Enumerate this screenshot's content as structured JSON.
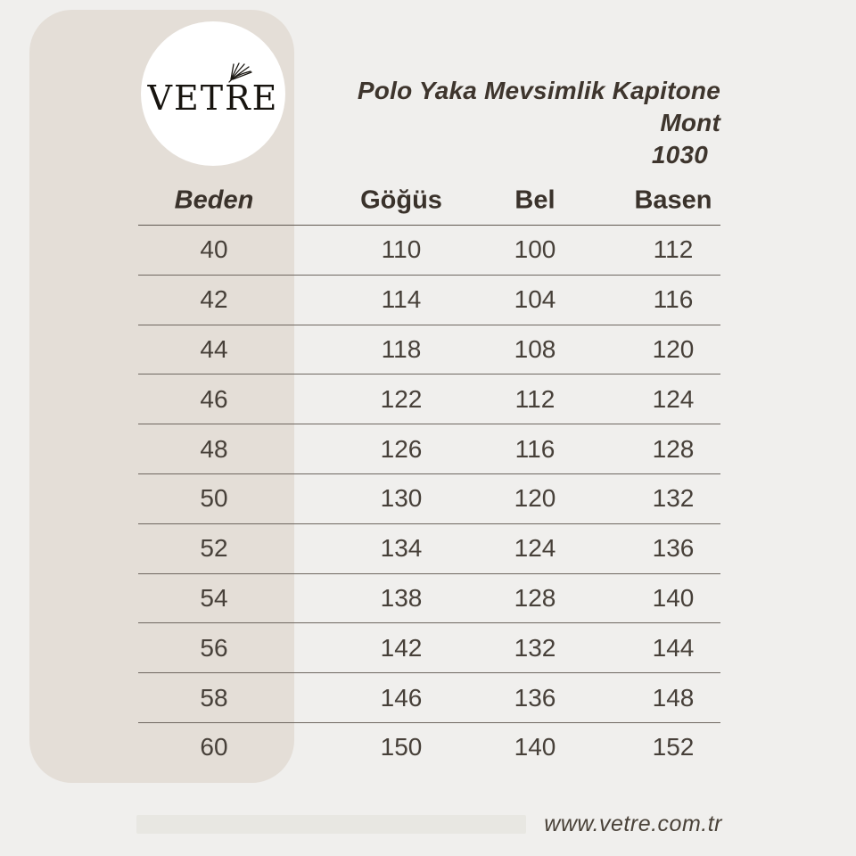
{
  "logo": {
    "brand": "VETRE",
    "icon": "palm-leaf-icon"
  },
  "product": {
    "title_line1": "Polo Yaka Mevsimlik Kapitone Mont",
    "title_line2": "1030"
  },
  "chart_data": {
    "type": "table",
    "title": "Polo Yaka Mevsimlik Kapitone Mont 1030",
    "columns": [
      "Beden",
      "Göğüs",
      "Bel",
      "Basen"
    ],
    "rows": [
      [
        "40",
        "110",
        "100",
        "112"
      ],
      [
        "42",
        "114",
        "104",
        "116"
      ],
      [
        "44",
        "118",
        "108",
        "120"
      ],
      [
        "46",
        "122",
        "112",
        "124"
      ],
      [
        "48",
        "126",
        "116",
        "128"
      ],
      [
        "50",
        "130",
        "120",
        "132"
      ],
      [
        "52",
        "134",
        "124",
        "136"
      ],
      [
        "54",
        "138",
        "128",
        "140"
      ],
      [
        "56",
        "142",
        "132",
        "144"
      ],
      [
        "58",
        "146",
        "136",
        "148"
      ],
      [
        "60",
        "150",
        "140",
        "152"
      ]
    ]
  },
  "footer": {
    "website": "www.vetre.com.tr"
  },
  "colors": {
    "background": "#f0efed",
    "panel": "#e4ded7",
    "circle": "#ffffff",
    "text_dark": "#3e352d",
    "table_text": "#474039",
    "rule_line": "#6e6760",
    "footer_bar": "#e8e7e2"
  }
}
